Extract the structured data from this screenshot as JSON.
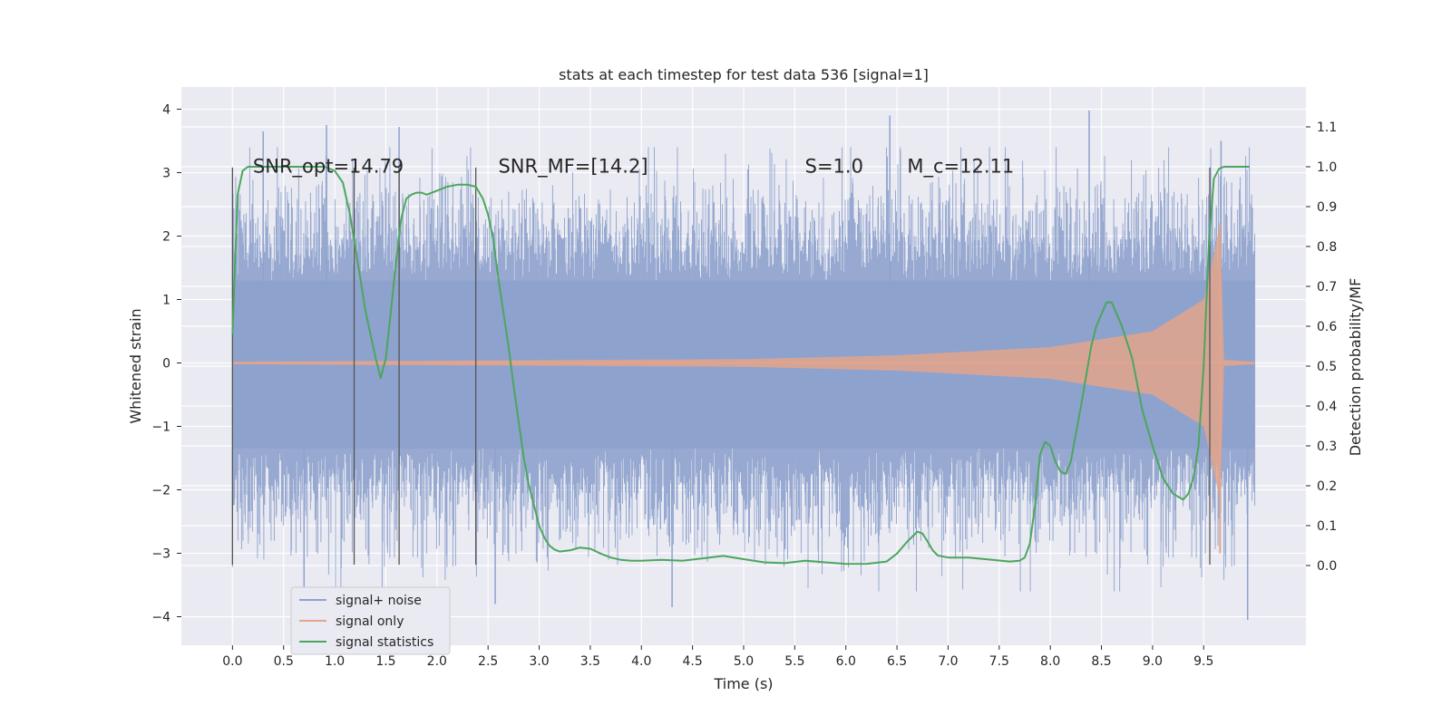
{
  "chart_data": {
    "type": "line",
    "title": "stats at each timestep for test data 536 [signal=1]",
    "xlabel": "Time (s)",
    "ylabel": "Whitened strain",
    "y2label": "Detection probability/MF",
    "xlim": [
      -0.5,
      10.5
    ],
    "ylim": [
      -4.45,
      4.35
    ],
    "y2lim": [
      -0.2,
      1.2
    ],
    "xticks": [
      "0.0",
      "0.5",
      "1.0",
      "1.5",
      "2.0",
      "2.5",
      "3.0",
      "3.5",
      "4.0",
      "4.5",
      "5.0",
      "5.5",
      "6.0",
      "6.5",
      "7.0",
      "7.5",
      "8.0",
      "8.5",
      "9.0",
      "9.5"
    ],
    "yticks": [
      "−4",
      "−3",
      "−2",
      "−1",
      "0",
      "1",
      "2",
      "3",
      "4"
    ],
    "y2ticks": [
      "0.0",
      "0.1",
      "0.2",
      "0.3",
      "0.4",
      "0.5",
      "0.6",
      "0.7",
      "0.8",
      "0.9",
      "1.0",
      "1.1"
    ],
    "grid": true,
    "legend_position": "lower-left",
    "annotations": [
      {
        "text": "SNR_opt=14.79",
        "x": 0.2,
        "y": 3.1
      },
      {
        "text": "SNR_MF=[14.2]",
        "x": 2.6,
        "y": 3.1
      },
      {
        "text": "S=1.0",
        "x": 5.6,
        "y": 3.1
      },
      {
        "text": "M_c=12.11",
        "x": 6.6,
        "y": 3.1
      }
    ],
    "window_markers_x": [
      0.0,
      1.19,
      1.63,
      2.38,
      9.56
    ],
    "window_marker_yrange": [
      -3.18,
      3.08
    ],
    "series": [
      {
        "name": "signal+ noise",
        "color": "#8ea2cd",
        "kind": "noisy-envelope",
        "x_range": [
          0.0,
          10.0
        ],
        "typical_envelope": [
          -1.35,
          1.3
        ],
        "spike_extremes": [
          {
            "x": 0.3,
            "y": 3.65
          },
          {
            "x": 0.92,
            "y": 3.75
          },
          {
            "x": 1.63,
            "y": 3.72
          },
          {
            "x": 6.43,
            "y": 3.9
          },
          {
            "x": 8.38,
            "y": 3.98
          },
          {
            "x": 9.67,
            "y": 3.5
          },
          {
            "x": 0.7,
            "y": -3.55
          },
          {
            "x": 2.57,
            "y": -3.8
          },
          {
            "x": 4.3,
            "y": -3.85
          },
          {
            "x": 9.93,
            "y": -4.05
          }
        ]
      },
      {
        "name": "signal only",
        "color": "#e3a58b",
        "kind": "chirp",
        "amplitude_points": [
          [
            0.0,
            0.02
          ],
          [
            5.0,
            0.06
          ],
          [
            6.5,
            0.12
          ],
          [
            8.0,
            0.25
          ],
          [
            9.0,
            0.5
          ],
          [
            9.5,
            1.0
          ],
          [
            9.6,
            1.7
          ],
          [
            9.66,
            2.2
          ],
          [
            9.7,
            0.05
          ],
          [
            10.0,
            0.02
          ]
        ]
      },
      {
        "name": "signal statistics",
        "color": "#4ca65e",
        "kind": "line",
        "axis": "right",
        "x": [
          0.0,
          0.05,
          0.1,
          0.15,
          0.25,
          0.35,
          0.5,
          0.65,
          0.8,
          0.9,
          1.0,
          1.08,
          1.15,
          1.2,
          1.25,
          1.3,
          1.35,
          1.4,
          1.45,
          1.5,
          1.55,
          1.6,
          1.65,
          1.7,
          1.75,
          1.8,
          1.85,
          1.9,
          2.0,
          2.1,
          2.2,
          2.3,
          2.38,
          2.45,
          2.5,
          2.55,
          2.6,
          2.7,
          2.75,
          2.8,
          2.85,
          2.9,
          2.95,
          3.0,
          3.05,
          3.1,
          3.15,
          3.2,
          3.3,
          3.4,
          3.5,
          3.6,
          3.7,
          3.8,
          3.9,
          4.0,
          4.2,
          4.4,
          4.6,
          4.8,
          5.0,
          5.2,
          5.4,
          5.6,
          5.8,
          6.0,
          6.2,
          6.4,
          6.5,
          6.6,
          6.7,
          6.75,
          6.8,
          6.85,
          6.9,
          7.0,
          7.2,
          7.4,
          7.6,
          7.7,
          7.75,
          7.8,
          7.85,
          7.9,
          7.95,
          8.0,
          8.05,
          8.1,
          8.15,
          8.2,
          8.3,
          8.4,
          8.45,
          8.5,
          8.55,
          8.6,
          8.65,
          8.7,
          8.8,
          8.9,
          9.0,
          9.1,
          9.2,
          9.3,
          9.35,
          9.4,
          9.45,
          9.5,
          9.55,
          9.6,
          9.65,
          9.7,
          9.75,
          9.8,
          9.9,
          9.95
        ],
        "y": [
          0.58,
          0.93,
          0.99,
          1.0,
          1.0,
          1.0,
          1.0,
          1.0,
          1.0,
          1.0,
          0.99,
          0.96,
          0.88,
          0.8,
          0.72,
          0.64,
          0.58,
          0.52,
          0.47,
          0.52,
          0.64,
          0.76,
          0.87,
          0.92,
          0.93,
          0.935,
          0.935,
          0.93,
          0.94,
          0.95,
          0.955,
          0.955,
          0.95,
          0.92,
          0.88,
          0.82,
          0.72,
          0.55,
          0.45,
          0.36,
          0.27,
          0.2,
          0.15,
          0.1,
          0.07,
          0.05,
          0.04,
          0.035,
          0.038,
          0.045,
          0.042,
          0.03,
          0.02,
          0.014,
          0.012,
          0.012,
          0.014,
          0.012,
          0.018,
          0.024,
          0.016,
          0.008,
          0.006,
          0.012,
          0.008,
          0.004,
          0.004,
          0.01,
          0.03,
          0.06,
          0.085,
          0.08,
          0.06,
          0.038,
          0.025,
          0.02,
          0.02,
          0.015,
          0.01,
          0.012,
          0.02,
          0.055,
          0.15,
          0.28,
          0.31,
          0.3,
          0.26,
          0.235,
          0.23,
          0.26,
          0.4,
          0.55,
          0.6,
          0.63,
          0.66,
          0.66,
          0.63,
          0.6,
          0.52,
          0.39,
          0.3,
          0.22,
          0.18,
          0.165,
          0.18,
          0.22,
          0.3,
          0.5,
          0.8,
          0.97,
          0.995,
          1.0,
          1.0,
          1.0,
          1.0,
          1.0
        ]
      }
    ]
  }
}
